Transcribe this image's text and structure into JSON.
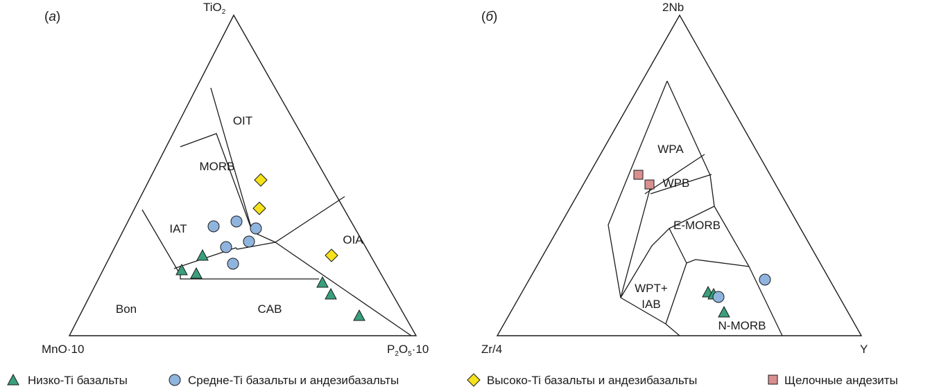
{
  "chart_data": [
    {
      "type": "ternary",
      "panel_label_open": "(",
      "panel_label_letter": "а",
      "panel_label_close": ")",
      "vertices": {
        "top": {
          "base": "TiO",
          "sub": "2",
          "tail": ""
        },
        "left": {
          "text": "MnO·10"
        },
        "right": {
          "parts": [
            {
              "t": "P",
              "s": "2"
            },
            {
              "t": "O",
              "s": "5"
            },
            {
              "t": "·10",
              "s": ""
            }
          ]
        }
      },
      "fields": [
        {
          "id": "OIT",
          "label": "OIT"
        },
        {
          "id": "MORB",
          "label": "MORB"
        },
        {
          "id": "IAT",
          "label": "IAT"
        },
        {
          "id": "OIA",
          "label": "OIA"
        },
        {
          "id": "Bon",
          "label": "Bon"
        },
        {
          "id": "CAB",
          "label": "CAB"
        }
      ]
    },
    {
      "type": "ternary",
      "panel_label_open": "(",
      "panel_label_letter": "б",
      "panel_label_close": ")",
      "vertices": {
        "top": {
          "text": "2Nb"
        },
        "left": {
          "text": "Zr/4"
        },
        "right": {
          "text": "Y"
        }
      },
      "fields": [
        {
          "id": "WPA",
          "label": "WPA"
        },
        {
          "id": "WPB",
          "label": "WPB"
        },
        {
          "id": "EMORB",
          "label": "E-MORB"
        },
        {
          "id": "WPT1",
          "label": "WPT+"
        },
        {
          "id": "WPT2",
          "label": "IAB"
        },
        {
          "id": "NMORB",
          "label": "N-MORB"
        }
      ]
    }
  ],
  "legend": [
    {
      "symbol": "triangle",
      "color": "#3a9f7b",
      "label": "Низко-Ti базальты"
    },
    {
      "symbol": "circle",
      "color": "#8fb4de",
      "label": "Средне-Ti базальты и андезибазальты"
    },
    {
      "symbol": "diamond",
      "color": "#f5e21a",
      "label": "Высоко-Ti базальты и андезибазальты"
    },
    {
      "symbol": "square",
      "color": "#d98f8f",
      "label": "Щелочные андезиты"
    }
  ],
  "colors": {
    "low_ti": "#3a9f7b",
    "mid_ti": "#8fb4de",
    "high_ti": "#f5e21a",
    "alkaline": "#d98f8f",
    "line": "#1a1a1a"
  }
}
